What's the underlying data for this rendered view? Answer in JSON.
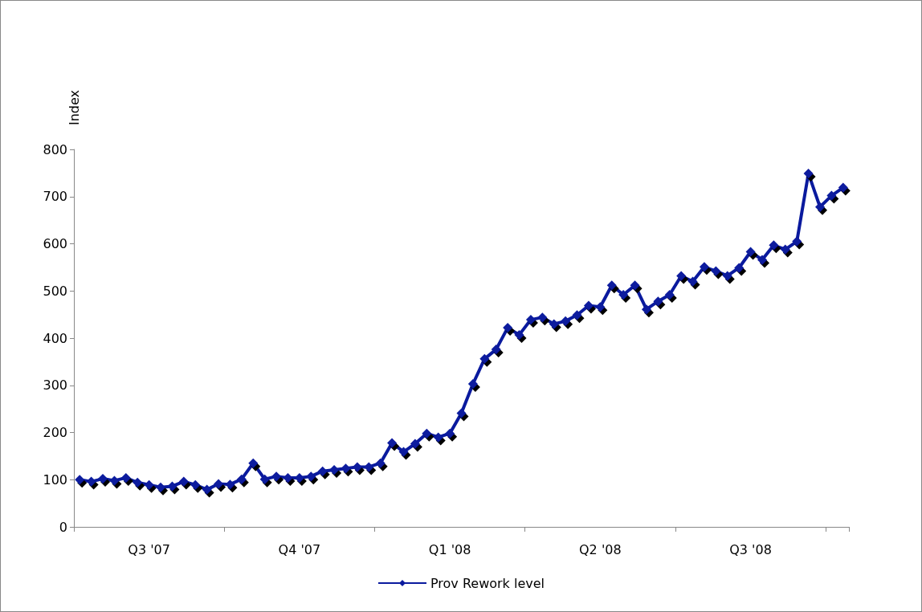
{
  "chart_data": {
    "type": "line",
    "ylabel": "Index",
    "categories": [
      null,
      null,
      null,
      null,
      null,
      null,
      "Q3 '07",
      null,
      null,
      null,
      null,
      null,
      null,
      null,
      null,
      null,
      null,
      null,
      null,
      "Q4 '07",
      null,
      null,
      null,
      null,
      null,
      null,
      null,
      null,
      null,
      null,
      null,
      null,
      "Q1 '08",
      null,
      null,
      null,
      null,
      null,
      null,
      null,
      null,
      null,
      null,
      null,
      null,
      "Q2 '08",
      null,
      null,
      null,
      null,
      null,
      null,
      null,
      null,
      null,
      null,
      null,
      null,
      "Q3 '08",
      null,
      null,
      null,
      null,
      null,
      null,
      null,
      null
    ],
    "series": [
      {
        "name": "Prov Rework level",
        "color": "#0a1a9e",
        "values": [
          100,
          96,
          102,
          98,
          104,
          94,
          89,
          84,
          86,
          96,
          89,
          79,
          91,
          90,
          101,
          135,
          101,
          107,
          104,
          104,
          107,
          118,
          121,
          124,
          127,
          127,
          135,
          178,
          159,
          176,
          198,
          190,
          198,
          241,
          303,
          356,
          376,
          422,
          407,
          439,
          444,
          430,
          436,
          449,
          469,
          466,
          512,
          492,
          512,
          461,
          478,
          492,
          532,
          520,
          551,
          542,
          532,
          549,
          583,
          566,
          597,
          588,
          605,
          749,
          678,
          702,
          719
        ]
      }
    ],
    "ylim": [
      0,
      800
    ],
    "yticks": [
      0,
      100,
      200,
      300,
      400,
      500,
      600,
      700,
      800
    ],
    "grid": false,
    "legend": "bottom",
    "marker": "diamond",
    "line_style": "solid"
  }
}
